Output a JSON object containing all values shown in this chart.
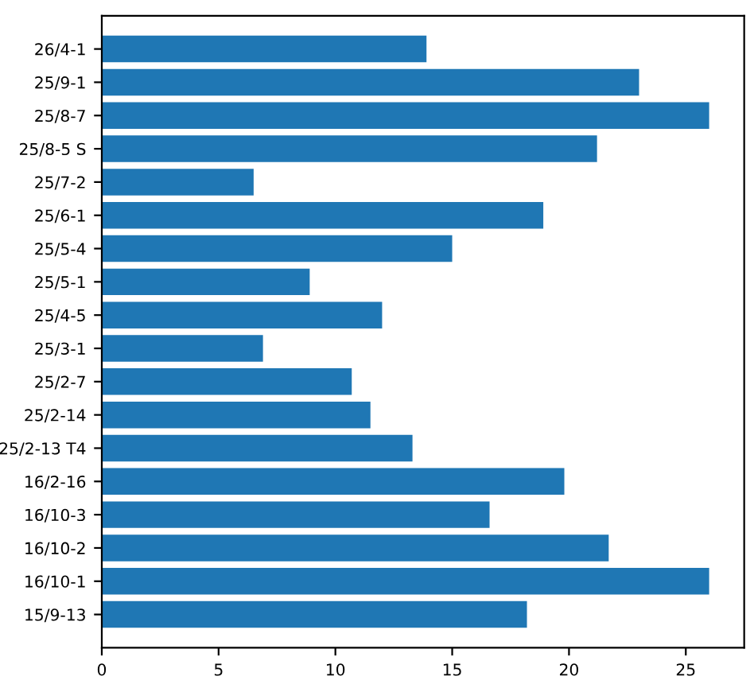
{
  "chart_data": {
    "type": "bar",
    "orientation": "horizontal",
    "categories": [
      "26/4-1",
      "25/9-1",
      "25/8-7",
      "25/8-5 S",
      "25/7-2",
      "25/6-1",
      "25/5-4",
      "25/5-1",
      "25/4-5",
      "25/3-1",
      "25/2-7",
      "25/2-14",
      "25/2-13 T4",
      "16/2-16",
      "16/10-3",
      "16/10-2",
      "16/10-1",
      "15/9-13"
    ],
    "values": [
      13.9,
      23.0,
      26.0,
      21.2,
      6.5,
      18.9,
      15.0,
      8.9,
      12.0,
      6.9,
      10.7,
      11.5,
      13.3,
      19.8,
      16.6,
      21.7,
      26.0,
      18.2
    ],
    "color": "#1f77b4",
    "xlim": [
      0,
      27.5
    ],
    "xticks": [
      0,
      5,
      10,
      15,
      20,
      25
    ],
    "grid": false,
    "legend": false
  }
}
